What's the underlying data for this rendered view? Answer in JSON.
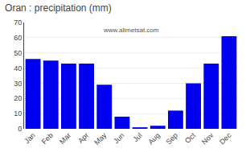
{
  "chart_data": {
    "type": "bar",
    "title": "Oran : precipitation (mm)",
    "categories": [
      "Jan",
      "Feb",
      "Mar",
      "Apr",
      "May",
      "Jun",
      "Jul",
      "Aug",
      "Sep",
      "Oct",
      "Nov",
      "Dec"
    ],
    "values": [
      46,
      45,
      43,
      43,
      29,
      8,
      1,
      2,
      12,
      30,
      43,
      61
    ],
    "color": "#0000ee",
    "ylim": [
      0,
      70
    ],
    "yticks": [
      0,
      10,
      20,
      30,
      40,
      50,
      60,
      70
    ],
    "grid": true,
    "annotations": [
      "www.allmetsat.com"
    ]
  }
}
